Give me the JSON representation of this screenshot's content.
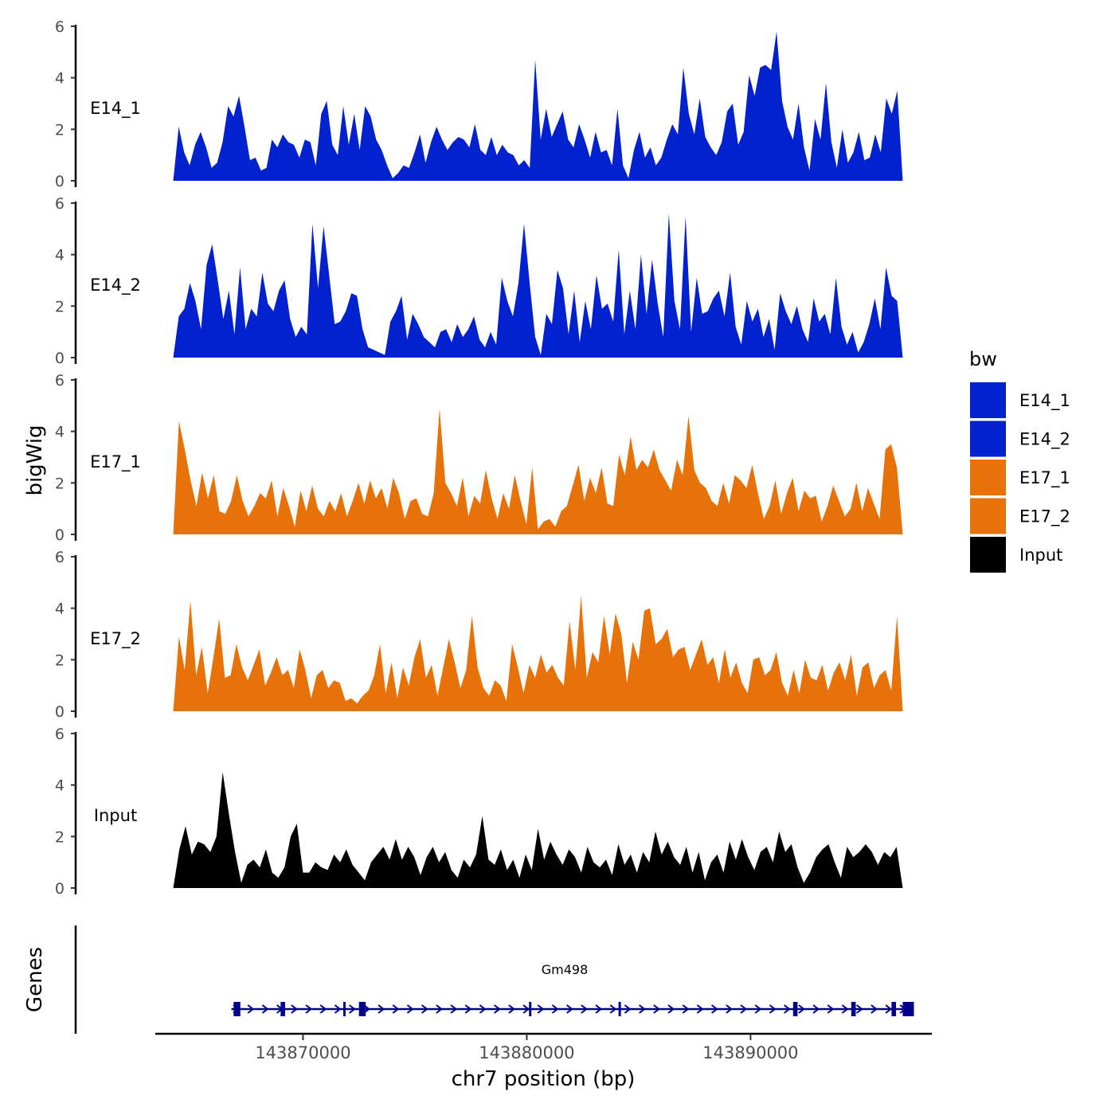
{
  "chart_data": {
    "type": "area",
    "title": "",
    "ylabel": "bigWig",
    "xlabel": "chr7 position (bp)",
    "ylim": [
      0,
      6
    ],
    "yticks": [
      "0",
      "2",
      "4",
      "6"
    ],
    "xlim": [
      143863400,
      143898100
    ],
    "xticks": [
      {
        "value": 143870000,
        "label": "143870000"
      },
      {
        "value": 143880000,
        "label": "143880000"
      },
      {
        "value": 143890000,
        "label": "143890000"
      }
    ],
    "region_start": 143864200,
    "region_end": 143896800,
    "series": [
      {
        "name": "E14_1",
        "color": "#0222CF",
        "values": [
          0,
          2.1,
          1.1,
          0.6,
          1.4,
          1.9,
          1.3,
          0.5,
          0.7,
          1.5,
          2.9,
          2.5,
          3.3,
          2.1,
          0.8,
          0.9,
          0.4,
          0.5,
          1.6,
          1.3,
          1.8,
          1.5,
          1.4,
          0.9,
          1.6,
          1.5,
          0.6,
          2.6,
          3.1,
          1.4,
          1.0,
          2.9,
          1.4,
          2.6,
          1.2,
          2.9,
          2.5,
          1.6,
          1.2,
          0.6,
          0.1,
          0.3,
          0.6,
          0.5,
          1.1,
          1.8,
          0.7,
          1.5,
          2.1,
          1.6,
          1.2,
          1.5,
          1.7,
          1.6,
          1.3,
          2.2,
          1.2,
          1.0,
          1.7,
          1.0,
          1.4,
          1.1,
          1.0,
          0.6,
          0.8,
          0.5,
          4.7,
          1.6,
          2.8,
          1.7,
          2.2,
          2.7,
          1.6,
          1.3,
          2.2,
          1.6,
          0.9,
          1.9,
          1.1,
          1.2,
          0.6,
          2.8,
          0.6,
          0.1,
          1.2,
          1.9,
          0.9,
          1.3,
          0.6,
          0.9,
          1.6,
          2.2,
          1.8,
          4.4,
          2.6,
          1.8,
          3.2,
          1.7,
          1.3,
          1.0,
          1.5,
          2.7,
          3.0,
          1.4,
          1.9,
          4.1,
          3.3,
          4.4,
          4.5,
          4.3,
          5.8,
          3.1,
          2.1,
          1.6,
          3.0,
          1.3,
          0.4,
          2.4,
          1.6,
          3.8,
          1.5,
          0.5,
          2.0,
          0.7,
          1.1,
          1.9,
          0.8,
          0.9,
          1.8,
          1.1,
          3.2,
          2.6,
          3.5,
          0
        ]
      },
      {
        "name": "E14_2",
        "color": "#0222CF",
        "values": [
          0,
          1.6,
          1.9,
          2.9,
          2.2,
          1.1,
          3.6,
          4.4,
          3.0,
          1.5,
          2.6,
          0.9,
          3.5,
          1.1,
          1.9,
          1.6,
          3.3,
          2.1,
          1.8,
          2.6,
          3.0,
          1.5,
          0.8,
          1.2,
          0.9,
          5.2,
          2.7,
          5.1,
          3.2,
          1.3,
          1.4,
          1.8,
          2.5,
          2.4,
          1.1,
          0.4,
          0.3,
          0.2,
          0.1,
          1.4,
          1.8,
          2.4,
          0.7,
          1.7,
          1.3,
          0.8,
          0.6,
          0.4,
          1.0,
          1.1,
          0.6,
          1.3,
          0.8,
          1.1,
          1.6,
          0.7,
          0.4,
          1.0,
          0.5,
          3.1,
          2.2,
          1.6,
          2.9,
          5.2,
          2.9,
          0.8,
          0.1,
          1.7,
          1.3,
          3.4,
          2.7,
          0.9,
          2.6,
          0.6,
          2.2,
          1.1,
          3.2,
          1.9,
          2.1,
          1.4,
          4.2,
          0.9,
          2.6,
          1.1,
          4.0,
          1.7,
          3.8,
          2.1,
          0.8,
          5.6,
          2.2,
          1.1,
          5.5,
          1.0,
          3.1,
          1.7,
          1.8,
          2.3,
          2.6,
          1.6,
          3.3,
          1.2,
          0.5,
          2.2,
          1.4,
          1.9,
          0.8,
          1.5,
          0.3,
          2.5,
          1.8,
          1.3,
          2.0,
          1.1,
          0.6,
          2.3,
          1.4,
          1.7,
          0.9,
          3.1,
          1.2,
          0.5,
          1.0,
          0.2,
          0.6,
          1.3,
          2.3,
          1.1,
          3.5,
          2.4,
          2.2,
          0
        ]
      },
      {
        "name": "E17_1",
        "color": "#E8720A",
        "values": [
          0,
          4.4,
          3.3,
          2.1,
          1.1,
          2.4,
          1.4,
          2.3,
          0.9,
          0.8,
          1.3,
          2.3,
          1.3,
          0.7,
          1.1,
          1.6,
          1.4,
          2.1,
          0.7,
          1.8,
          1.1,
          0.3,
          1.7,
          0.9,
          1.9,
          1.0,
          0.7,
          1.3,
          0.9,
          1.6,
          0.7,
          1.3,
          2.0,
          1.2,
          2.1,
          1.4,
          1.8,
          1.0,
          2.2,
          1.6,
          0.6,
          1.3,
          1.4,
          0.8,
          0.7,
          1.6,
          4.9,
          2.0,
          1.6,
          1.1,
          2.2,
          0.7,
          1.5,
          1.2,
          2.5,
          1.4,
          0.6,
          1.6,
          1.0,
          2.3,
          1.3,
          0.4,
          2.6,
          0.2,
          0.5,
          0.6,
          0.3,
          0.9,
          1.1,
          1.9,
          2.7,
          1.3,
          2.2,
          1.6,
          2.6,
          1.2,
          1.1,
          3.1,
          2.3,
          3.8,
          2.5,
          2.9,
          2.6,
          3.3,
          2.5,
          2.1,
          1.7,
          2.9,
          2.3,
          4.6,
          2.5,
          2.0,
          1.8,
          1.3,
          1.1,
          2.0,
          1.2,
          2.3,
          2.1,
          1.8,
          2.7,
          1.6,
          0.6,
          1.1,
          2.1,
          0.8,
          1.6,
          2.2,
          0.9,
          1.7,
          1.4,
          1.5,
          0.5,
          1.1,
          1.9,
          1.3,
          0.7,
          1.0,
          2.0,
          0.9,
          1.8,
          1.2,
          0.6,
          3.3,
          3.5,
          2.6,
          0
        ]
      },
      {
        "name": "E17_2",
        "color": "#E8720A",
        "values": [
          0,
          2.9,
          1.6,
          4.3,
          1.4,
          2.5,
          0.7,
          2.1,
          3.6,
          1.3,
          1.4,
          2.6,
          1.7,
          1.2,
          1.8,
          2.4,
          1.0,
          1.5,
          2.1,
          1.4,
          1.6,
          0.9,
          2.4,
          1.6,
          0.5,
          1.4,
          1.6,
          0.9,
          1.2,
          1.1,
          0.4,
          0.5,
          0.3,
          0.6,
          0.8,
          1.4,
          2.6,
          0.7,
          1.9,
          0.5,
          1.7,
          1.0,
          2.1,
          2.8,
          1.3,
          1.8,
          0.6,
          1.7,
          2.8,
          1.9,
          0.9,
          1.6,
          3.7,
          1.7,
          0.9,
          0.6,
          1.2,
          1.0,
          0.4,
          2.6,
          1.7,
          0.7,
          1.8,
          1.3,
          2.2,
          1.5,
          1.8,
          1.3,
          1.0,
          3.5,
          1.6,
          4.5,
          1.3,
          2.3,
          1.9,
          3.7,
          2.2,
          3.8,
          3.0,
          1.1,
          2.7,
          2.0,
          3.9,
          4.0,
          2.6,
          2.8,
          3.2,
          2.1,
          2.4,
          2.5,
          1.6,
          2.2,
          2.8,
          1.8,
          2.1,
          1.1,
          2.4,
          1.3,
          1.9,
          1.1,
          0.7,
          2.0,
          2.1,
          1.4,
          1.6,
          2.3,
          1.1,
          0.6,
          1.6,
          0.7,
          2.0,
          1.3,
          1.2,
          1.8,
          0.8,
          1.5,
          1.9,
          1.2,
          2.2,
          0.6,
          1.7,
          1.9,
          0.9,
          1.4,
          1.6,
          0.8,
          3.7,
          0
        ]
      },
      {
        "name": "Input",
        "color": "#000000",
        "values": [
          0,
          1.5,
          2.4,
          1.3,
          1.8,
          1.7,
          1.4,
          2.0,
          4.5,
          2.9,
          1.4,
          0.2,
          0.9,
          1.1,
          0.8,
          1.5,
          0.6,
          0.4,
          0.8,
          2.0,
          2.5,
          0.6,
          0.6,
          1.0,
          0.8,
          0.7,
          1.3,
          1.0,
          1.5,
          0.9,
          0.6,
          0.3,
          1.0,
          1.3,
          1.6,
          1.1,
          1.9,
          1.1,
          1.6,
          1.2,
          0.5,
          1.2,
          1.6,
          1.0,
          1.4,
          0.7,
          0.4,
          1.1,
          0.8,
          1.3,
          2.8,
          1.1,
          0.9,
          1.5,
          0.7,
          1.1,
          0.4,
          1.3,
          0.7,
          2.3,
          1.1,
          1.8,
          1.3,
          0.9,
          1.5,
          1.2,
          0.6,
          1.6,
          1.0,
          0.8,
          1.1,
          0.5,
          1.7,
          0.9,
          1.3,
          0.6,
          1.4,
          1.0,
          2.2,
          1.3,
          1.8,
          1.2,
          0.9,
          1.6,
          0.6,
          1.4,
          0.3,
          1.0,
          1.3,
          0.6,
          1.8,
          1.1,
          1.9,
          1.2,
          0.7,
          1.4,
          1.6,
          1.0,
          2.2,
          1.4,
          1.7,
          0.8,
          0.2,
          0.6,
          1.2,
          1.5,
          1.7,
          1.0,
          0.4,
          1.6,
          1.2,
          1.4,
          1.7,
          1.4,
          0.9,
          1.4,
          1.2,
          1.6,
          0
        ]
      }
    ],
    "legend": {
      "title": "bw",
      "position": "right",
      "entries": [
        "E14_1",
        "E14_2",
        "E17_1",
        "E17_2",
        "Input"
      ]
    },
    "genes_panel": {
      "label": "Genes",
      "gene_name": "Gm498",
      "strand": "+",
      "color": "#00008B",
      "start": 143866800,
      "end": 143897300,
      "exons": [
        {
          "start": 143866900,
          "end": 143867200
        },
        {
          "start": 143869000,
          "end": 143869200
        },
        {
          "start": 143871800,
          "end": 143871900
        },
        {
          "start": 143872500,
          "end": 143872800
        },
        {
          "start": 143880100,
          "end": 143880200
        },
        {
          "start": 143884100,
          "end": 143884200
        },
        {
          "start": 143891900,
          "end": 143892100
        },
        {
          "start": 143894500,
          "end": 143894700
        },
        {
          "start": 143896300,
          "end": 143896500
        },
        {
          "start": 143896800,
          "end": 143897300
        }
      ]
    }
  }
}
